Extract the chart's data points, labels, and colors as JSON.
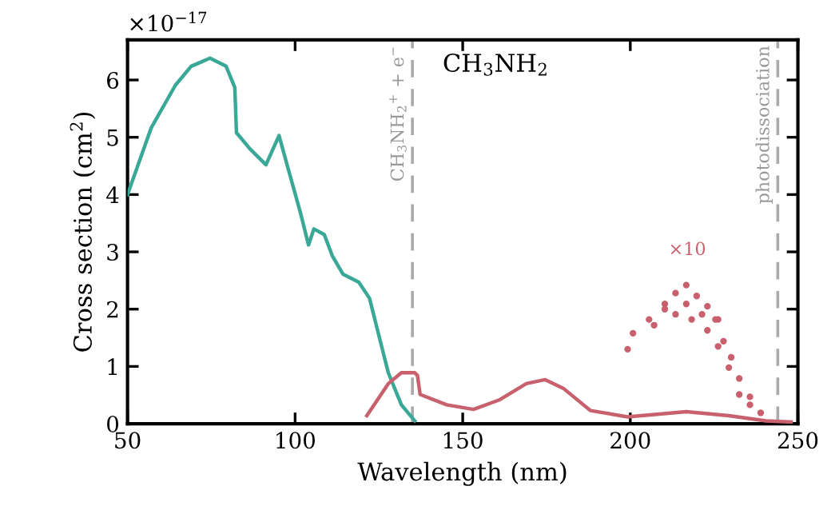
{
  "chart_data": {
    "type": "line",
    "xlabel": "Wavelength (nm)",
    "ylabel": "Cross section (cm$^{2}$)",
    "xlim": [
      50,
      250
    ],
    "xticks": [
      50,
      100,
      150,
      200,
      250
    ],
    "ylim": [
      0,
      6.7
    ],
    "yticks": [
      0,
      1,
      2,
      3,
      4,
      5,
      6
    ],
    "grid": false,
    "line_style": "solid",
    "marker": "none",
    "series": [
      {
        "color": "#3aa897",
        "x": [
          50,
          57.1,
          64.3,
          69,
          74.6,
          79.4,
          82,
          82.5,
          86.5,
          91.3,
          95.2,
          97.6,
          101.6,
          104,
          105.6,
          108.7,
          111.1,
          114.3,
          119,
          122.2,
          124.6,
          127.8,
          131.7,
          135.7
        ],
        "values": [
          4.0,
          5.17,
          5.91,
          6.24,
          6.38,
          6.24,
          5.87,
          5.08,
          4.8,
          4.52,
          5.03,
          4.52,
          3.68,
          3.12,
          3.4,
          3.3,
          2.93,
          2.61,
          2.47,
          2.19,
          1.63,
          0.89,
          0.33,
          0.05
        ]
      },
      {
        "color": "#c8606e",
        "x": [
          121.4,
          127.8,
          131.7,
          135.7,
          136.5,
          137.3,
          145.2,
          153.2,
          161.1,
          169,
          174.6,
          180.2,
          188.1,
          199.2,
          216.7,
          229.4,
          240.5,
          248
        ],
        "values": [
          0.14,
          0.7,
          0.89,
          0.89,
          0.84,
          0.51,
          0.33,
          0.25,
          0.42,
          0.7,
          0.77,
          0.61,
          0.23,
          0.12,
          0.21,
          0.14,
          0.05,
          0.03
        ]
      },
      {
        "type": "scatter",
        "marker": "circle",
        "color": "#c8606e",
        "x": [
          199.2,
          200.8,
          205.6,
          210.3,
          213.5,
          216.7,
          219.8,
          223,
          226.2,
          227.8,
          230.1,
          232.5,
          235.7,
          238.9,
          207.1,
          213.5,
          218.3,
          223,
          226.2,
          229.4,
          232.5,
          235.7,
          210.3,
          216.7,
          221.4,
          225.4
        ],
        "values": [
          1.3,
          1.58,
          1.82,
          2.09,
          2.28,
          2.42,
          2.23,
          2.05,
          1.82,
          1.44,
          1.16,
          0.79,
          0.47,
          0.19,
          1.72,
          1.91,
          1.82,
          1.63,
          1.35,
          0.98,
          0.51,
          0.33,
          2.0,
          2.09,
          1.91,
          1.82
        ]
      }
    ],
    "ref_lines": [
      {
        "axis": "x",
        "value": 135,
        "label": "CH$_{3}$NH$_{2}$$^{+}$ + e$^{−}$",
        "color": "#aaaaaa",
        "line_style": "dashed"
      },
      {
        "axis": "x",
        "value": 244,
        "label": "photodissociation",
        "color": "#aaaaaa",
        "line_style": "dashed"
      }
    ],
    "annotations": [
      "×10$^{−17}$",
      "CH$_{3}$NH$_{2}$",
      "×10"
    ]
  }
}
